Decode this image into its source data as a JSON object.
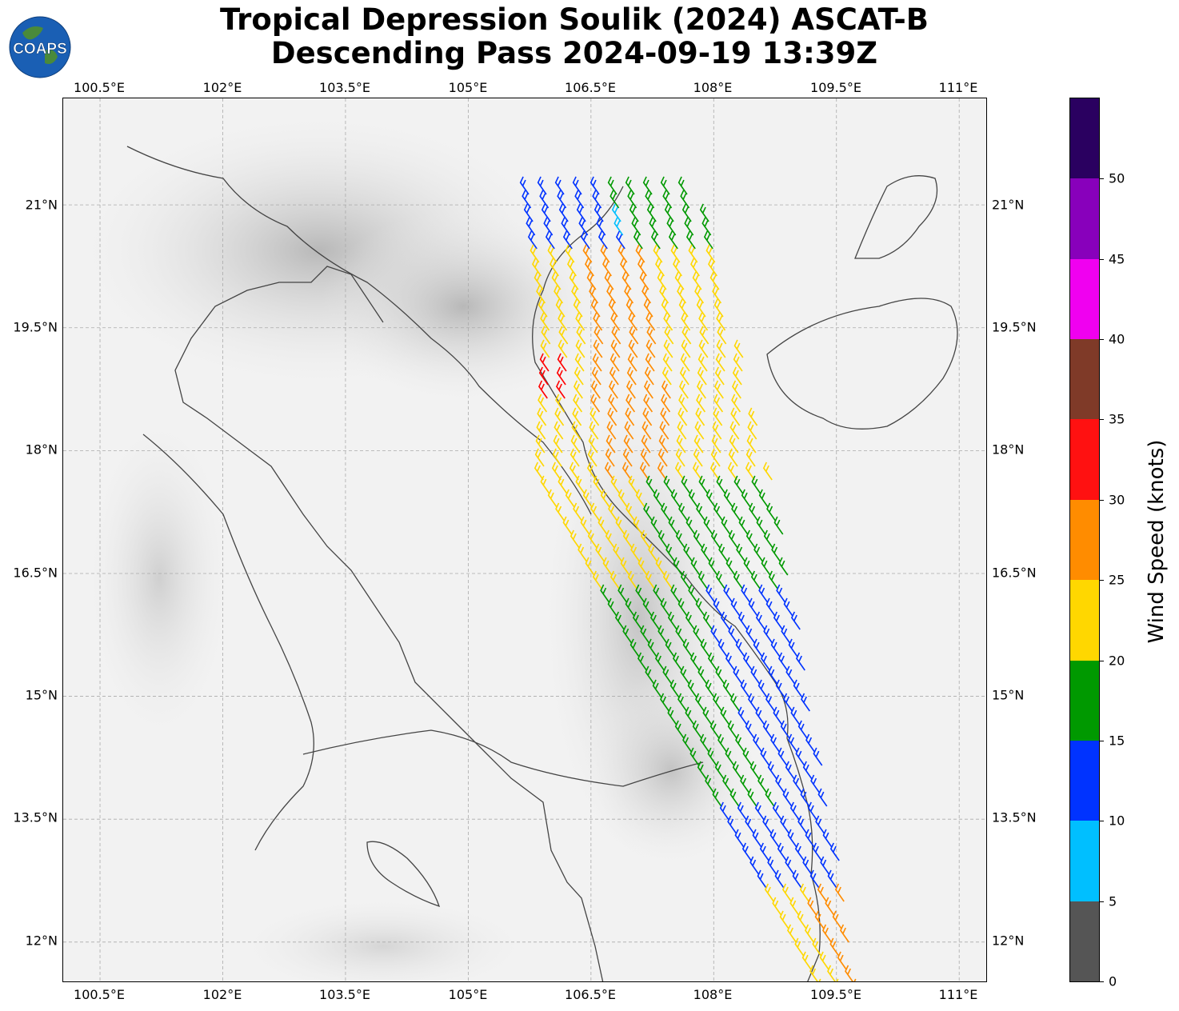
{
  "title": {
    "line1": "Tropical Depression Soulik (2024) ASCAT-B",
    "line2": "Descending Pass 2024-09-19 13:39Z"
  },
  "logo": {
    "text": "COAPS",
    "colors": {
      "ocean": "#1a5fb4",
      "land": "#4a8a3a",
      "text": "#ffffff"
    }
  },
  "map": {
    "lon_ticks": [
      "100.5°E",
      "102°E",
      "103.5°E",
      "105°E",
      "106.5°E",
      "108°E",
      "109.5°E",
      "111°E"
    ],
    "lat_ticks": [
      "21°N",
      "19.5°N",
      "18°N",
      "16.5°N",
      "15°N",
      "13.5°N",
      "12°N"
    ],
    "extent": {
      "lon": [
        100.05,
        111.35
      ],
      "lat": [
        11.5,
        22.3
      ]
    },
    "wind_barbs_description_colors": [
      "#0033ff",
      "#009900",
      "#ffd700",
      "#ff8c00",
      "#ff0000",
      "#00bfff"
    ]
  },
  "colorbar": {
    "title": "Wind Speed (knots)",
    "ticks": [
      "0",
      "5",
      "10",
      "15",
      "20",
      "25",
      "30",
      "35",
      "40",
      "45",
      "50"
    ],
    "segments": [
      {
        "from": 0,
        "to": 5,
        "color": "#555555"
      },
      {
        "from": 5,
        "to": 10,
        "color": "#00bfff"
      },
      {
        "from": 10,
        "to": 15,
        "color": "#0033ff"
      },
      {
        "from": 15,
        "to": 20,
        "color": "#009900"
      },
      {
        "from": 20,
        "to": 25,
        "color": "#ffd700"
      },
      {
        "from": 25,
        "to": 30,
        "color": "#ff8c00"
      },
      {
        "from": 30,
        "to": 35,
        "color": "#ff1111"
      },
      {
        "from": 35,
        "to": 40,
        "color": "#7f3a28"
      },
      {
        "from": 40,
        "to": 45,
        "color": "#f000f0"
      },
      {
        "from": 45,
        "to": 50,
        "color": "#8800bb"
      },
      {
        "from": 50,
        "to": 55,
        "color": "#2a0060"
      }
    ],
    "range": [
      0,
      55
    ]
  }
}
